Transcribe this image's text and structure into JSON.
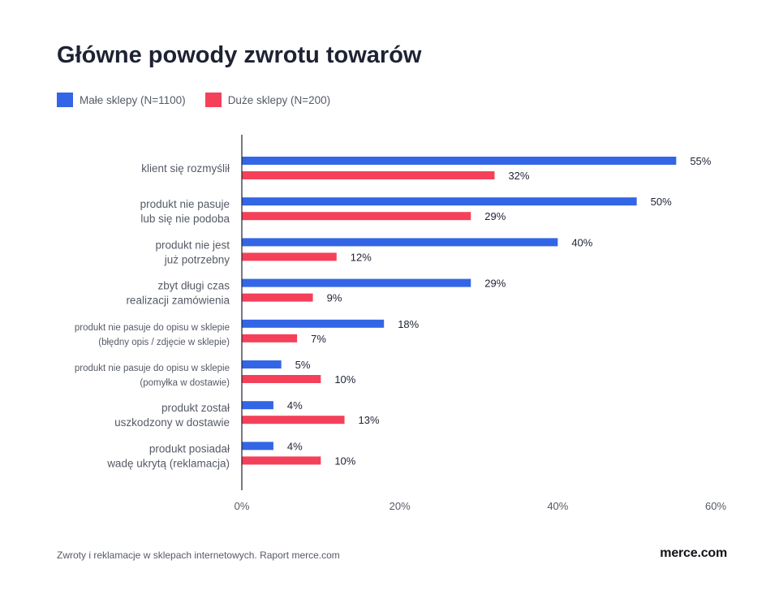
{
  "chart_data": {
    "type": "bar",
    "orientation": "horizontal",
    "title": "Główne powody zwrotu towarów",
    "categories": [
      [
        "klient się rozmyślił"
      ],
      [
        "produkt nie pasuje",
        "lub się nie podoba"
      ],
      [
        "produkt nie jest",
        "już potrzebny"
      ],
      [
        "zbyt długi czas",
        "realizacji zamówienia"
      ],
      [
        "produkt nie pasuje do opisu w sklepie",
        "(błędny opis / zdjęcie w sklepie)"
      ],
      [
        "produkt nie pasuje do opisu w sklepie",
        "(pomyłka w dostawie)"
      ],
      [
        "produkt został",
        "uszkodzony w dostawie"
      ],
      [
        "produkt posiadał",
        "wadę ukrytą (reklamacja)"
      ]
    ],
    "small_category_labels": [
      false,
      false,
      false,
      false,
      true,
      true,
      false,
      false
    ],
    "series": [
      {
        "name": "Małe sklepy (N=1100)",
        "color": "#3366e6",
        "values": [
          55,
          50,
          40,
          29,
          18,
          5,
          4,
          4
        ]
      },
      {
        "name": "Duże sklepy (N=200)",
        "color": "#f5405a",
        "values": [
          32,
          29,
          12,
          9,
          7,
          10,
          13,
          10
        ]
      }
    ],
    "value_suffix": "%",
    "xlim": [
      0,
      60
    ],
    "xticks": [
      0,
      20,
      40,
      60
    ],
    "xtick_labels": [
      "0%",
      "20%",
      "40%",
      "60%"
    ],
    "grid": false,
    "legend_position": "top-left"
  },
  "footer": {
    "source": "Zwroty i reklamacje w sklepach internetowych. Raport merce.com",
    "logo": "merce.com"
  }
}
